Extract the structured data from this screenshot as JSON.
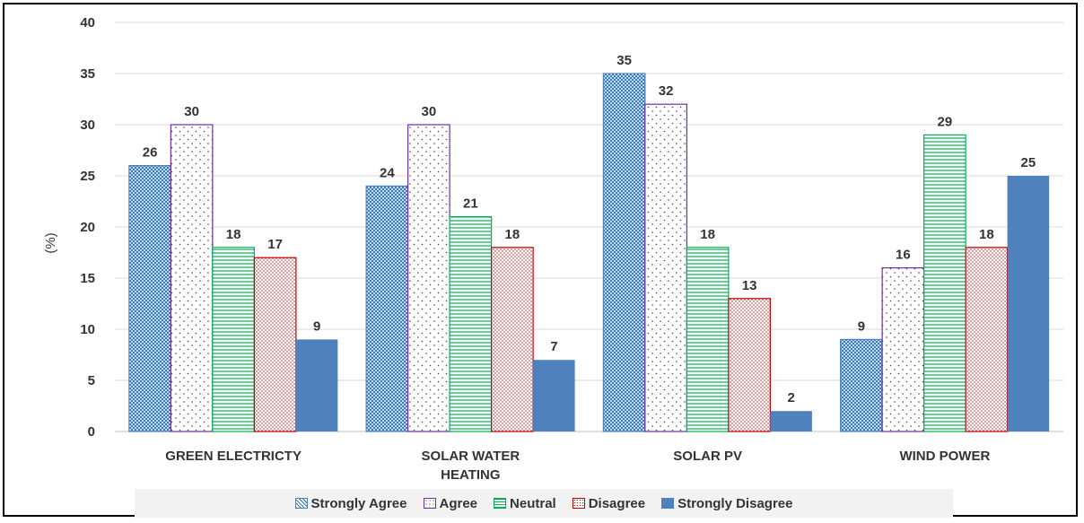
{
  "chart_data": {
    "type": "bar",
    "title": "",
    "xlabel": "",
    "ylabel": "(%)",
    "ylim": [
      0,
      40
    ],
    "yticks": [
      0,
      5,
      10,
      15,
      20,
      25,
      30,
      35,
      40
    ],
    "grid": true,
    "legend_position": "bottom",
    "categories": [
      "GREEN ELECTRICTY",
      "SOLAR WATER HEATING",
      "SOLAR PV",
      "WIND POWER"
    ],
    "category_lines": [
      [
        "GREEN ELECTRICTY"
      ],
      [
        "SOLAR WATER",
        "HEATING"
      ],
      [
        "SOLAR PV"
      ],
      [
        "WIND POWER"
      ]
    ],
    "series": [
      {
        "name": "Strongly Agree",
        "values": [
          26,
          24,
          35,
          9
        ],
        "color": "#4f81bd",
        "pattern": "crosshatch"
      },
      {
        "name": "Agree",
        "values": [
          30,
          30,
          32,
          16
        ],
        "color": "#7030a0",
        "pattern": "dots"
      },
      {
        "name": "Neutral",
        "values": [
          18,
          21,
          18,
          29
        ],
        "color": "#00b050",
        "pattern": "horizontal-lines"
      },
      {
        "name": "Disagree",
        "values": [
          17,
          18,
          13,
          18
        ],
        "color": "#c00000",
        "pattern": "dense-dots"
      },
      {
        "name": "Strongly Disagree",
        "values": [
          9,
          7,
          2,
          25
        ],
        "color": "#4f81bd",
        "pattern": "solid"
      }
    ]
  }
}
